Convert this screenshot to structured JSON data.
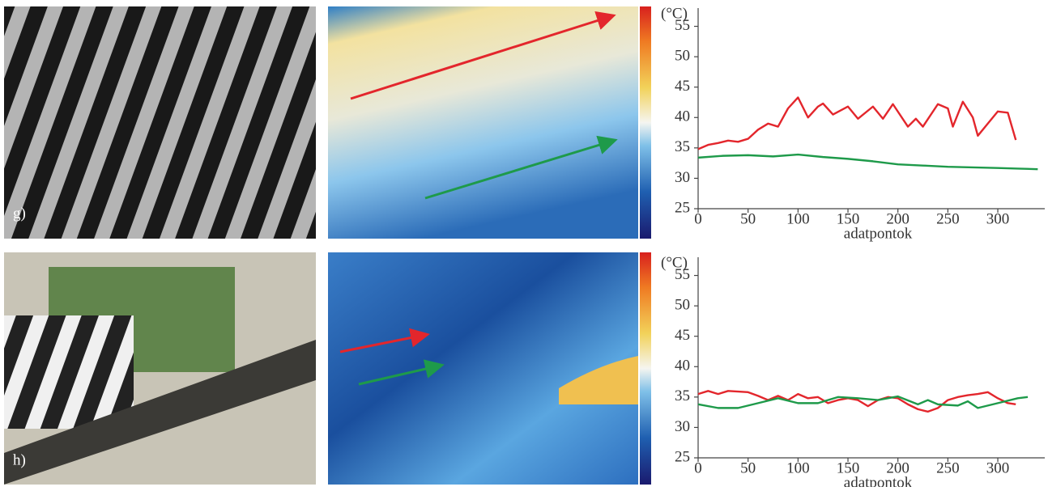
{
  "panel_labels": [
    "g)",
    "h)"
  ],
  "chart_data": [
    {
      "type": "line",
      "ylabel": "(°C)",
      "xlabel": "adatpontok",
      "xlim": [
        0,
        347
      ],
      "ylim": [
        25,
        58
      ],
      "xticks": [
        0,
        50,
        100,
        150,
        200,
        250,
        300
      ],
      "yticks": [
        25,
        30,
        35,
        40,
        45,
        50,
        55
      ],
      "series": [
        {
          "color": "#e3262c",
          "x": [
            0,
            10,
            20,
            30,
            40,
            50,
            60,
            70,
            80,
            90,
            100,
            110,
            120,
            125,
            135,
            150,
            160,
            175,
            185,
            195,
            210,
            218,
            225,
            240,
            250,
            255,
            265,
            275,
            280,
            290,
            300,
            310,
            318
          ],
          "values": [
            34.8,
            35.5,
            35.8,
            36.2,
            36.0,
            36.5,
            38.0,
            39.0,
            38.5,
            41.5,
            43.3,
            40.0,
            41.8,
            42.3,
            40.5,
            41.8,
            39.8,
            41.8,
            39.8,
            42.2,
            38.5,
            39.8,
            38.5,
            42.2,
            41.5,
            38.5,
            42.6,
            40.0,
            37.0,
            39.0,
            41.0,
            40.8,
            36.3
          ]
        },
        {
          "color": "#1e9a4a",
          "x": [
            0,
            25,
            50,
            75,
            100,
            125,
            150,
            175,
            200,
            225,
            250,
            275,
            300,
            320,
            340
          ],
          "values": [
            33.4,
            33.7,
            33.8,
            33.6,
            33.9,
            33.5,
            33.2,
            32.8,
            32.3,
            32.1,
            31.9,
            31.8,
            31.7,
            31.6,
            31.5
          ]
        }
      ]
    },
    {
      "type": "line",
      "ylabel": "(°C)",
      "xlabel": "adatpontok",
      "xlim": [
        0,
        347
      ],
      "ylim": [
        25,
        58
      ],
      "xticks": [
        0,
        50,
        100,
        150,
        200,
        250,
        300
      ],
      "yticks": [
        25,
        30,
        35,
        40,
        45,
        50,
        55
      ],
      "series": [
        {
          "color": "#e3262c",
          "x": [
            0,
            10,
            20,
            30,
            50,
            60,
            70,
            80,
            90,
            100,
            110,
            120,
            130,
            140,
            150,
            160,
            170,
            180,
            190,
            200,
            210,
            220,
            230,
            240,
            250,
            260,
            270,
            280,
            290,
            300,
            310,
            318
          ],
          "values": [
            35.5,
            36.0,
            35.5,
            36.0,
            35.8,
            35.2,
            34.5,
            35.2,
            34.5,
            35.5,
            34.8,
            35.0,
            34.0,
            34.5,
            34.8,
            34.5,
            33.5,
            34.5,
            35.0,
            34.8,
            33.8,
            33.0,
            32.6,
            33.2,
            34.5,
            35.0,
            35.3,
            35.5,
            35.8,
            34.8,
            34.0,
            33.8
          ]
        },
        {
          "color": "#1e9a4a",
          "x": [
            0,
            20,
            40,
            60,
            80,
            100,
            120,
            140,
            160,
            180,
            200,
            220,
            230,
            240,
            260,
            270,
            280,
            300,
            320,
            330
          ],
          "values": [
            33.8,
            33.2,
            33.2,
            34.0,
            34.8,
            34.0,
            34.0,
            35.0,
            34.8,
            34.5,
            35.1,
            33.8,
            34.5,
            33.8,
            33.6,
            34.3,
            33.2,
            34.0,
            34.8,
            35.0
          ]
        }
      ]
    }
  ]
}
